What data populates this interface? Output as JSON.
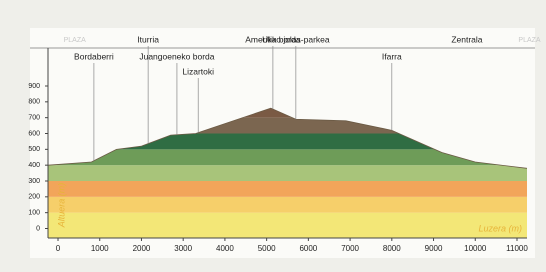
{
  "chart_data": {
    "type": "area",
    "x": [
      -240,
      800,
      1400,
      2000,
      2700,
      3300,
      5100,
      5700,
      6900,
      8000,
      9200,
      10000,
      11240
    ],
    "values": [
      400,
      420,
      500,
      520,
      590,
      600,
      760,
      690,
      680,
      620,
      480,
      420,
      380
    ],
    "xlim": [
      -240,
      11240
    ],
    "ylim": [
      -60,
      1140
    ],
    "xticks": [
      0,
      1000,
      2000,
      3000,
      4000,
      5000,
      6000,
      7000,
      8000,
      9000,
      10000,
      11000
    ],
    "yticks": [
      0,
      100,
      200,
      300,
      400,
      500,
      600,
      700,
      800,
      900
    ],
    "band_colors": [
      "#f3e777",
      "#f6cf6a",
      "#f2a55a",
      "#a8c47a",
      "#6e9c58",
      "#2f6d43",
      "#7b6650",
      "#7a5a44",
      "#7a5a44"
    ],
    "xlabel": "Luzera (m)",
    "ylabel": "Altuera (m)",
    "places": [
      {
        "label": "PLAZA",
        "x": 400
      },
      {
        "label": "Bordaberri",
        "x": 860
      },
      {
        "label": "Iturria",
        "x": 2160
      },
      {
        "label": "Amerika borda",
        "x": 5150
      },
      {
        "label": "Juangoeneko borda",
        "x": 2850
      },
      {
        "label": "Lizartoki",
        "x": 3360
      },
      {
        "label": "Uliko jolas-parkea",
        "x": 5700
      },
      {
        "label": "Ifarra",
        "x": 8000
      },
      {
        "label": "Zentrala",
        "x": 9800
      },
      {
        "label": "PLAZA",
        "x": 11300
      }
    ]
  }
}
